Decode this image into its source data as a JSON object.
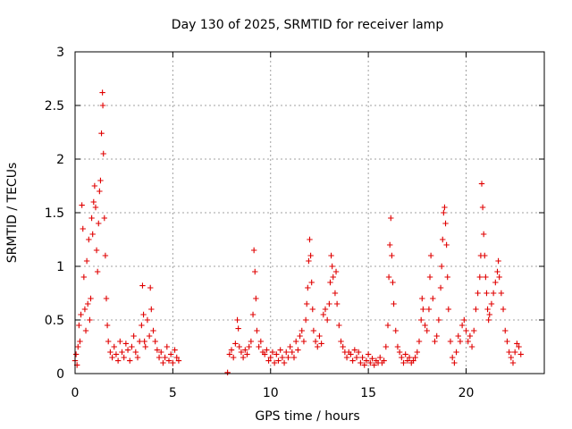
{
  "chart_data": {
    "type": "scatter",
    "title": "Day 130 of 2025, SRMTID for receiver lamp",
    "xlabel": "GPS time / hours",
    "ylabel": "SRMTID / TECUs",
    "xlim": [
      0,
      24
    ],
    "ylim": [
      0,
      3
    ],
    "xticks": [
      0,
      5,
      10,
      15,
      20
    ],
    "xtick_labels": [
      "0",
      "5",
      "10",
      "15",
      "20"
    ],
    "yticks": [
      0,
      0.5,
      1,
      1.5,
      2,
      2.5,
      3
    ],
    "ytick_labels": [
      "0",
      "0.5",
      "1",
      "1.5",
      "2",
      "2.5",
      "3"
    ],
    "grid": true,
    "marker": "+",
    "marker_color": "#e00000",
    "series": [
      {
        "name": "SRMTID",
        "points": [
          [
            0.0,
            0.12
          ],
          [
            0.05,
            0.18
          ],
          [
            0.1,
            0.08
          ],
          [
            0.15,
            0.25
          ],
          [
            0.2,
            0.45
          ],
          [
            0.25,
            0.3
          ],
          [
            0.3,
            0.55
          ],
          [
            0.35,
            1.57
          ],
          [
            0.4,
            1.35
          ],
          [
            0.45,
            0.9
          ],
          [
            0.5,
            0.6
          ],
          [
            0.55,
            0.4
          ],
          [
            0.6,
            1.05
          ],
          [
            0.65,
            0.65
          ],
          [
            0.7,
            1.25
          ],
          [
            0.75,
            0.5
          ],
          [
            0.8,
            0.7
          ],
          [
            0.85,
            1.45
          ],
          [
            0.9,
            1.3
          ],
          [
            0.95,
            1.6
          ],
          [
            1.0,
            1.75
          ],
          [
            1.05,
            1.55
          ],
          [
            1.1,
            1.15
          ],
          [
            1.15,
            0.95
          ],
          [
            1.2,
            1.4
          ],
          [
            1.25,
            1.7
          ],
          [
            1.3,
            1.8
          ],
          [
            1.35,
            2.24
          ],
          [
            1.4,
            2.62
          ],
          [
            1.42,
            2.5
          ],
          [
            1.45,
            2.05
          ],
          [
            1.5,
            1.45
          ],
          [
            1.55,
            1.1
          ],
          [
            1.6,
            0.7
          ],
          [
            1.65,
            0.45
          ],
          [
            1.7,
            0.3
          ],
          [
            1.8,
            0.2
          ],
          [
            1.9,
            0.15
          ],
          [
            2.0,
            0.25
          ],
          [
            2.1,
            0.18
          ],
          [
            2.2,
            0.12
          ],
          [
            2.3,
            0.3
          ],
          [
            2.4,
            0.2
          ],
          [
            2.5,
            0.15
          ],
          [
            2.6,
            0.28
          ],
          [
            2.7,
            0.22
          ],
          [
            2.8,
            0.12
          ],
          [
            2.9,
            0.25
          ],
          [
            3.0,
            0.35
          ],
          [
            3.1,
            0.2
          ],
          [
            3.2,
            0.15
          ],
          [
            3.3,
            0.3
          ],
          [
            3.4,
            0.45
          ],
          [
            3.45,
            0.82
          ],
          [
            3.5,
            0.55
          ],
          [
            3.55,
            0.3
          ],
          [
            3.6,
            0.25
          ],
          [
            3.7,
            0.5
          ],
          [
            3.8,
            0.35
          ],
          [
            3.85,
            0.8
          ],
          [
            3.9,
            0.6
          ],
          [
            4.0,
            0.4
          ],
          [
            4.1,
            0.3
          ],
          [
            4.2,
            0.22
          ],
          [
            4.3,
            0.15
          ],
          [
            4.4,
            0.2
          ],
          [
            4.5,
            0.1
          ],
          [
            4.6,
            0.15
          ],
          [
            4.7,
            0.25
          ],
          [
            4.8,
            0.12
          ],
          [
            4.9,
            0.18
          ],
          [
            5.0,
            0.1
          ],
          [
            5.1,
            0.22
          ],
          [
            5.2,
            0.15
          ],
          [
            5.3,
            0.12
          ],
          [
            7.8,
            0.01
          ],
          [
            7.9,
            0.18
          ],
          [
            8.0,
            0.22
          ],
          [
            8.1,
            0.15
          ],
          [
            8.2,
            0.28
          ],
          [
            8.3,
            0.5
          ],
          [
            8.35,
            0.42
          ],
          [
            8.4,
            0.25
          ],
          [
            8.5,
            0.2
          ],
          [
            8.6,
            0.15
          ],
          [
            8.7,
            0.22
          ],
          [
            8.8,
            0.18
          ],
          [
            8.9,
            0.25
          ],
          [
            9.0,
            0.3
          ],
          [
            9.1,
            0.55
          ],
          [
            9.15,
            1.15
          ],
          [
            9.2,
            0.95
          ],
          [
            9.25,
            0.7
          ],
          [
            9.3,
            0.4
          ],
          [
            9.4,
            0.25
          ],
          [
            9.5,
            0.3
          ],
          [
            9.6,
            0.2
          ],
          [
            9.7,
            0.18
          ],
          [
            9.8,
            0.22
          ],
          [
            9.9,
            0.12
          ],
          [
            10.0,
            0.15
          ],
          [
            10.1,
            0.2
          ],
          [
            10.2,
            0.1
          ],
          [
            10.3,
            0.18
          ],
          [
            10.4,
            0.12
          ],
          [
            10.5,
            0.22
          ],
          [
            10.6,
            0.15
          ],
          [
            10.7,
            0.1
          ],
          [
            10.8,
            0.2
          ],
          [
            10.9,
            0.15
          ],
          [
            11.0,
            0.25
          ],
          [
            11.1,
            0.2
          ],
          [
            11.2,
            0.15
          ],
          [
            11.3,
            0.3
          ],
          [
            11.4,
            0.22
          ],
          [
            11.5,
            0.35
          ],
          [
            11.6,
            0.4
          ],
          [
            11.7,
            0.3
          ],
          [
            11.8,
            0.5
          ],
          [
            11.85,
            0.65
          ],
          [
            11.9,
            0.8
          ],
          [
            11.95,
            1.05
          ],
          [
            12.0,
            1.25
          ],
          [
            12.05,
            1.1
          ],
          [
            12.1,
            0.85
          ],
          [
            12.15,
            0.6
          ],
          [
            12.2,
            0.4
          ],
          [
            12.3,
            0.3
          ],
          [
            12.4,
            0.25
          ],
          [
            12.5,
            0.35
          ],
          [
            12.6,
            0.28
          ],
          [
            12.7,
            0.55
          ],
          [
            12.8,
            0.6
          ],
          [
            12.9,
            0.5
          ],
          [
            13.0,
            0.65
          ],
          [
            13.05,
            0.85
          ],
          [
            13.1,
            1.1
          ],
          [
            13.15,
            1.0
          ],
          [
            13.2,
            0.9
          ],
          [
            13.3,
            0.75
          ],
          [
            13.35,
            0.95
          ],
          [
            13.4,
            0.65
          ],
          [
            13.5,
            0.45
          ],
          [
            13.6,
            0.3
          ],
          [
            13.7,
            0.25
          ],
          [
            13.8,
            0.2
          ],
          [
            13.9,
            0.15
          ],
          [
            14.0,
            0.2
          ],
          [
            14.1,
            0.18
          ],
          [
            14.2,
            0.12
          ],
          [
            14.3,
            0.22
          ],
          [
            14.4,
            0.15
          ],
          [
            14.5,
            0.2
          ],
          [
            14.6,
            0.1
          ],
          [
            14.7,
            0.15
          ],
          [
            14.8,
            0.08
          ],
          [
            14.9,
            0.12
          ],
          [
            15.0,
            0.18
          ],
          [
            15.1,
            0.1
          ],
          [
            15.2,
            0.14
          ],
          [
            15.3,
            0.08
          ],
          [
            15.4,
            0.12
          ],
          [
            15.5,
            0.1
          ],
          [
            15.6,
            0.15
          ],
          [
            15.7,
            0.1
          ],
          [
            15.8,
            0.12
          ],
          [
            15.9,
            0.25
          ],
          [
            16.0,
            0.45
          ],
          [
            16.05,
            0.9
          ],
          [
            16.1,
            1.2
          ],
          [
            16.15,
            1.45
          ],
          [
            16.2,
            1.1
          ],
          [
            16.25,
            0.85
          ],
          [
            16.3,
            0.65
          ],
          [
            16.4,
            0.4
          ],
          [
            16.5,
            0.25
          ],
          [
            16.6,
            0.2
          ],
          [
            16.7,
            0.15
          ],
          [
            16.8,
            0.1
          ],
          [
            16.9,
            0.18
          ],
          [
            17.0,
            0.12
          ],
          [
            17.1,
            0.15
          ],
          [
            17.2,
            0.1
          ],
          [
            17.3,
            0.12
          ],
          [
            17.4,
            0.15
          ],
          [
            17.5,
            0.2
          ],
          [
            17.6,
            0.3
          ],
          [
            17.7,
            0.5
          ],
          [
            17.75,
            0.7
          ],
          [
            17.8,
            0.6
          ],
          [
            17.9,
            0.45
          ],
          [
            18.0,
            0.4
          ],
          [
            18.1,
            0.6
          ],
          [
            18.15,
            0.9
          ],
          [
            18.2,
            1.1
          ],
          [
            18.3,
            0.7
          ],
          [
            18.4,
            0.3
          ],
          [
            18.5,
            0.35
          ],
          [
            18.6,
            0.5
          ],
          [
            18.7,
            0.8
          ],
          [
            18.75,
            1.0
          ],
          [
            18.8,
            1.25
          ],
          [
            18.85,
            1.5
          ],
          [
            18.9,
            1.55
          ],
          [
            18.95,
            1.4
          ],
          [
            19.0,
            1.2
          ],
          [
            19.05,
            0.9
          ],
          [
            19.1,
            0.6
          ],
          [
            19.2,
            0.3
          ],
          [
            19.3,
            0.15
          ],
          [
            19.4,
            0.1
          ],
          [
            19.5,
            0.2
          ],
          [
            19.6,
            0.35
          ],
          [
            19.7,
            0.3
          ],
          [
            19.8,
            0.45
          ],
          [
            19.9,
            0.5
          ],
          [
            20.0,
            0.4
          ],
          [
            20.1,
            0.3
          ],
          [
            20.2,
            0.35
          ],
          [
            20.3,
            0.25
          ],
          [
            20.4,
            0.4
          ],
          [
            20.5,
            0.6
          ],
          [
            20.6,
            0.75
          ],
          [
            20.7,
            0.9
          ],
          [
            20.75,
            1.1
          ],
          [
            20.8,
            1.77
          ],
          [
            20.85,
            1.55
          ],
          [
            20.9,
            1.3
          ],
          [
            20.95,
            1.1
          ],
          [
            21.0,
            0.9
          ],
          [
            21.05,
            0.75
          ],
          [
            21.1,
            0.6
          ],
          [
            21.15,
            0.5
          ],
          [
            21.2,
            0.55
          ],
          [
            21.3,
            0.65
          ],
          [
            21.4,
            0.75
          ],
          [
            21.5,
            0.85
          ],
          [
            21.6,
            0.95
          ],
          [
            21.65,
            1.05
          ],
          [
            21.7,
            0.9
          ],
          [
            21.8,
            0.75
          ],
          [
            21.9,
            0.6
          ],
          [
            22.0,
            0.4
          ],
          [
            22.1,
            0.3
          ],
          [
            22.2,
            0.2
          ],
          [
            22.3,
            0.15
          ],
          [
            22.4,
            0.1
          ],
          [
            22.5,
            0.2
          ],
          [
            22.6,
            0.28
          ],
          [
            22.7,
            0.25
          ],
          [
            22.8,
            0.18
          ]
        ]
      }
    ]
  }
}
